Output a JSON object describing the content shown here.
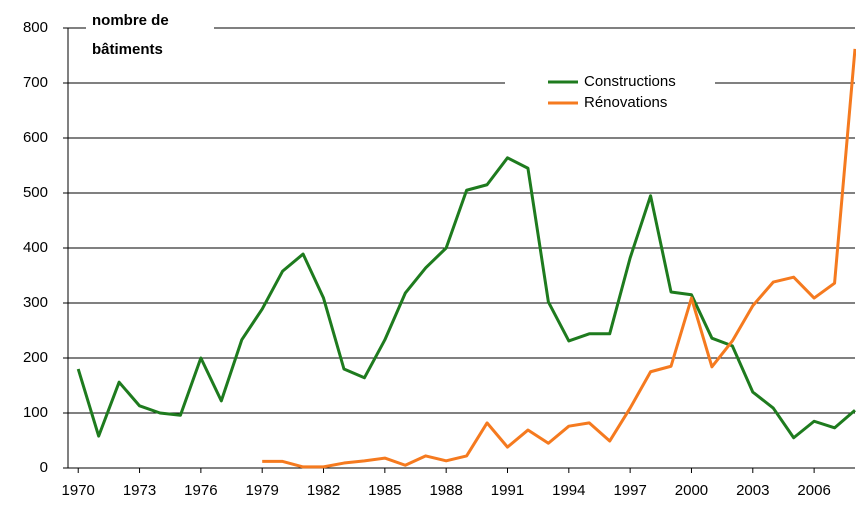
{
  "chart_data": {
    "type": "line",
    "ylabel": [
      "nombre de",
      "bâtiments"
    ],
    "x": [
      1970,
      1971,
      1972,
      1973,
      1974,
      1975,
      1976,
      1977,
      1978,
      1979,
      1980,
      1981,
      1982,
      1983,
      1984,
      1985,
      1986,
      1987,
      1988,
      1989,
      1990,
      1991,
      1992,
      1993,
      1994,
      1995,
      1996,
      1997,
      1998,
      1999,
      2000,
      2001,
      2002,
      2003,
      2004,
      2005,
      2006,
      2007,
      2008
    ],
    "series": [
      {
        "name": "Constructions",
        "color": "#1e7b1e",
        "values": [
          180,
          58,
          156,
          113,
          100,
          96,
          200,
          122,
          233,
          289,
          358,
          389,
          309,
          180,
          164,
          233,
          318,
          364,
          400,
          505,
          515,
          564,
          545,
          302,
          231,
          244,
          244,
          382,
          495,
          320,
          315,
          236,
          222,
          138,
          109,
          55,
          85,
          73,
          105
        ]
      },
      {
        "name": "Rénovations",
        "color": "#f57a1f",
        "values": [
          null,
          null,
          null,
          null,
          null,
          null,
          null,
          null,
          null,
          12,
          12,
          2,
          2,
          9,
          13,
          18,
          5,
          22,
          13,
          22,
          82,
          38,
          69,
          45,
          76,
          82,
          49,
          109,
          175,
          185,
          309,
          184,
          231,
          295,
          338,
          347,
          309,
          336,
          762
        ]
      }
    ],
    "xlim": [
      1969.5,
      2008
    ],
    "xticks": [
      1970,
      1973,
      1976,
      1979,
      1982,
      1985,
      1988,
      1991,
      1994,
      1997,
      2000,
      2003,
      2006
    ],
    "ylim": [
      0,
      800
    ],
    "yticks": [
      0,
      100,
      200,
      300,
      400,
      500,
      600,
      700,
      800
    ],
    "grid": true,
    "legend": "top-right"
  }
}
